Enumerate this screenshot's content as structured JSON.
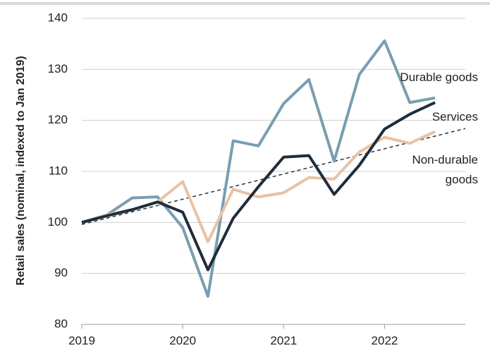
{
  "chart_data": {
    "type": "line",
    "y_label": "Retail sales (nominal, indexed to Jan 2019)",
    "x": [
      2019,
      2019.25,
      2019.5,
      2019.75,
      2020,
      2020.25,
      2020.5,
      2020.75,
      2021,
      2021.25,
      2021.5,
      2021.75,
      2022,
      2022.25,
      2022.5
    ],
    "series": [
      {
        "name": "Durable goods",
        "color": "#7a9db0",
        "values": [
          100,
          101.5,
          104.8,
          105,
          99,
          85.5,
          116,
          115,
          123.3,
          128,
          112,
          129,
          135.6,
          123.5,
          124.4
        ]
      },
      {
        "name": "Services",
        "color": "#1f2d3d",
        "values": [
          100,
          101.3,
          102.5,
          104,
          102,
          90.7,
          100.8,
          107,
          112.8,
          113.1,
          105.5,
          111.2,
          118.3,
          121.2,
          123.5
        ]
      },
      {
        "name": "Non-durable goods",
        "color": "#e8c3a3",
        "values": [
          100,
          101.5,
          102.5,
          104,
          108,
          96.2,
          106.5,
          105,
          105.8,
          108.8,
          108.5,
          113.8,
          116.7,
          115.5,
          117.8
        ]
      }
    ],
    "trend": {
      "color": "#2b3442",
      "x": [
        2019,
        2022.8
      ],
      "values": [
        99.6,
        118.4
      ]
    },
    "xlim": [
      2019,
      2022.8
    ],
    "xticks": [
      2019,
      2020,
      2021,
      2022
    ],
    "ylim": [
      80,
      140
    ],
    "yticks": [
      80,
      90,
      100,
      110,
      120,
      130,
      140
    ],
    "grid": true
  }
}
